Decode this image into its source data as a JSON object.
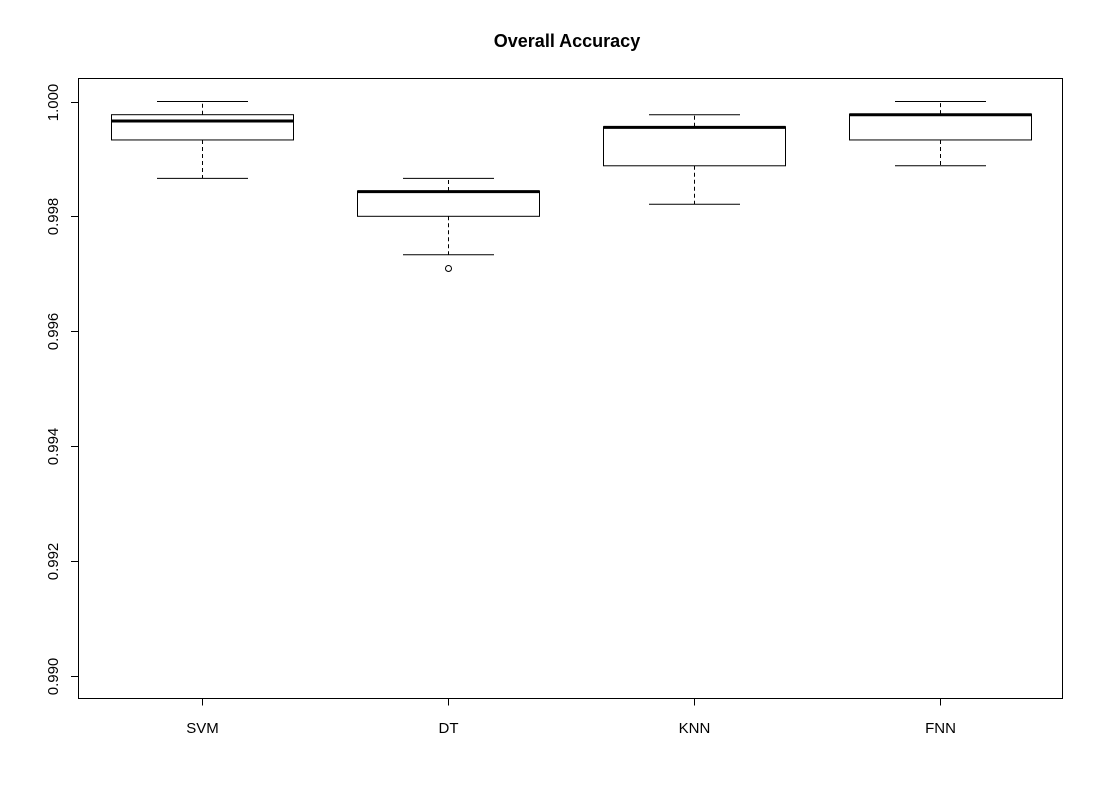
{
  "chart_data": {
    "type": "boxplot",
    "title": "Overall Accuracy",
    "xlabel": "",
    "ylabel": "",
    "categories": [
      "SVM",
      "DT",
      "KNN",
      "FNN"
    ],
    "ylim": [
      0.9896,
      1.00039
    ],
    "yticks": [
      0.99,
      0.992,
      0.994,
      0.996,
      0.998,
      1.0
    ],
    "ytick_labels": [
      "0.990",
      "0.992",
      "0.994",
      "0.996",
      "0.998",
      "1.000"
    ],
    "grid": false,
    "legend": "none",
    "boxes": [
      {
        "name": "SVM",
        "whisker_low": 0.99866,
        "q1": 0.99933,
        "median": 0.99966,
        "q3": 0.99977,
        "whisker_high": 1.0,
        "outliers": []
      },
      {
        "name": "DT",
        "whisker_low": 0.99733,
        "q1": 0.998,
        "median": 0.99843,
        "q3": 0.99844,
        "whisker_high": 0.99866,
        "outliers": [
          0.99709
        ]
      },
      {
        "name": "KNN",
        "whisker_low": 0.99821,
        "q1": 0.99888,
        "median": 0.99955,
        "q3": 0.99956,
        "whisker_high": 0.99977,
        "outliers": []
      },
      {
        "name": "FNN",
        "whisker_low": 0.99888,
        "q1": 0.99933,
        "median": 0.99977,
        "q3": 0.99978,
        "whisker_high": 1.0,
        "outliers": []
      }
    ]
  }
}
